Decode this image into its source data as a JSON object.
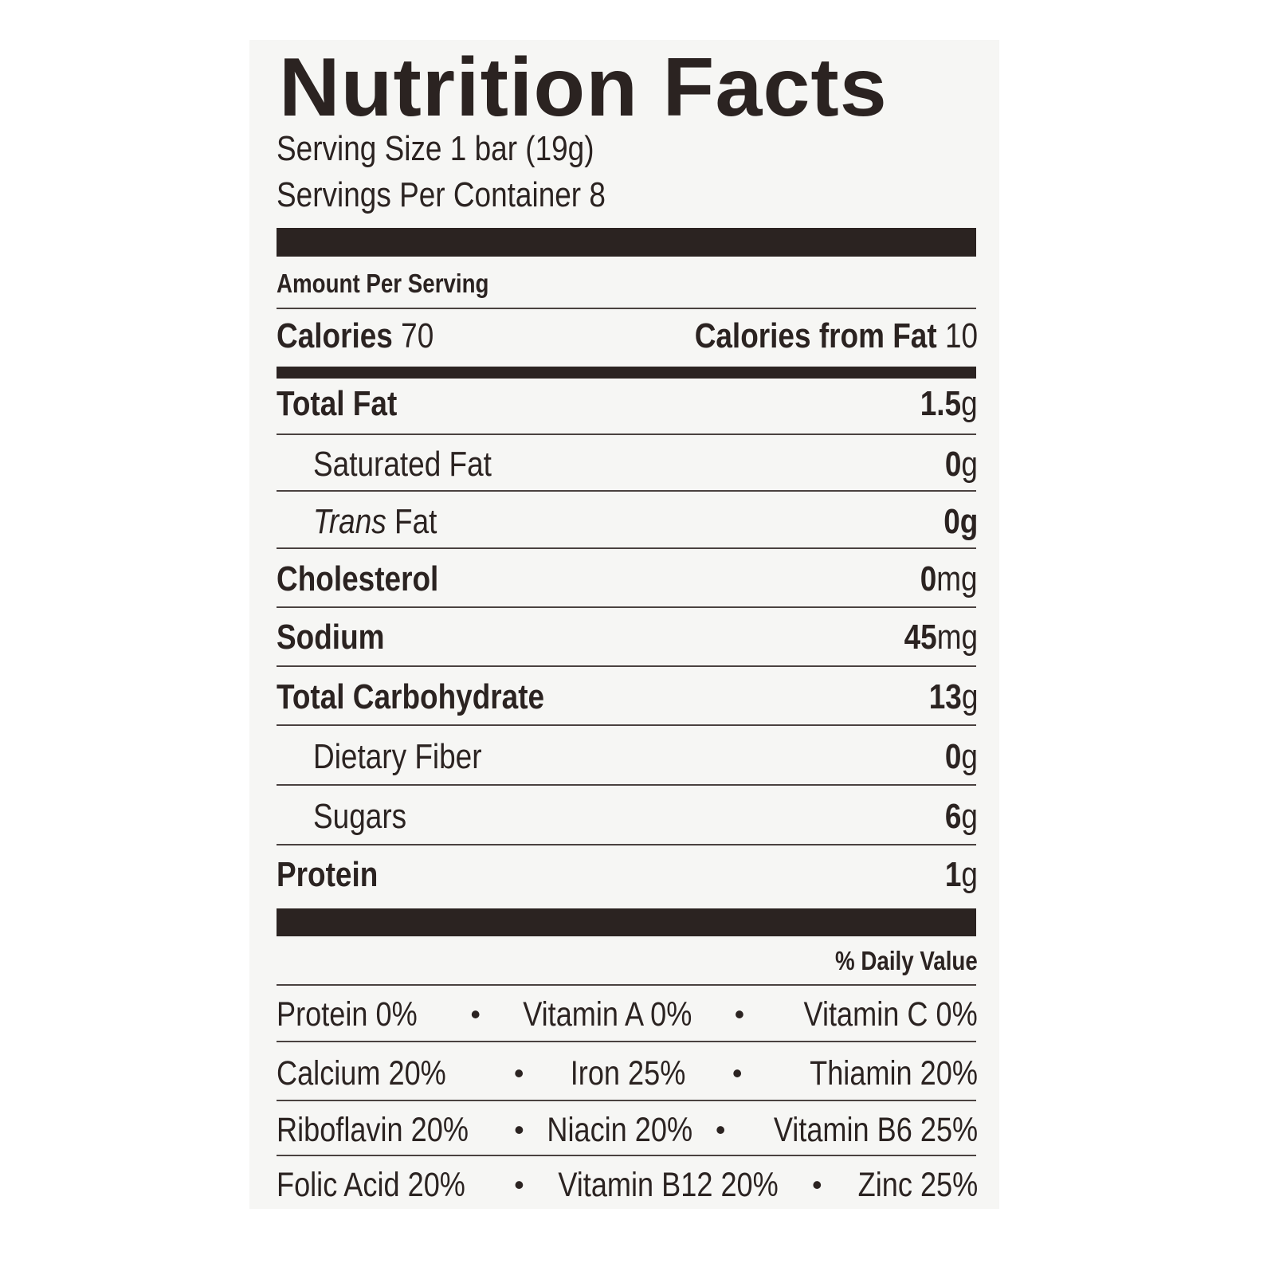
{
  "label": {
    "title": "Nutrition Facts",
    "serving_size": "Serving Size 1 bar (19g)",
    "servings_per_container": "Servings Per Container 8",
    "amount_per_serving": "Amount Per Serving",
    "calories_label": "Calories",
    "calories_value": "70",
    "calories_from_fat_label": "Calories from Fat",
    "calories_from_fat_value": "10",
    "nutrients": [
      {
        "name": "Total Fat",
        "amount": "1.5",
        "unit": "g"
      },
      {
        "name": "Saturated Fat",
        "amount": "0",
        "unit": "g"
      },
      {
        "name_italic": "Trans",
        "name": "Fat",
        "amount": "0",
        "unit": "g"
      },
      {
        "name": "Cholesterol",
        "amount": "0",
        "unit": "mg"
      },
      {
        "name": "Sodium",
        "amount": "45",
        "unit": "mg"
      },
      {
        "name": "Total Carbohydrate",
        "amount": "13",
        "unit": "g"
      },
      {
        "name": "Dietary Fiber",
        "amount": "0",
        "unit": "g"
      },
      {
        "name": "Sugars",
        "amount": "6",
        "unit": "g"
      },
      {
        "name": "Protein",
        "amount": "1",
        "unit": "g"
      }
    ],
    "daily_value_header": "% Daily Value",
    "bullet": "•",
    "vitamin_rows": [
      [
        "Protein 0%",
        "Vitamin A 0%",
        "Vitamin C 0%"
      ],
      [
        "Calcium 20%",
        "Iron 25%",
        "Thiamin 20%"
      ],
      [
        "Riboflavin 20%",
        "Niacin 20%",
        "Vitamin B6 25%"
      ],
      [
        "Folic Acid 20%",
        "Vitamin B12 20%",
        "Zinc 25%"
      ]
    ],
    "colors": {
      "ink": "#2b2321",
      "background": "#f6f6f4"
    }
  }
}
